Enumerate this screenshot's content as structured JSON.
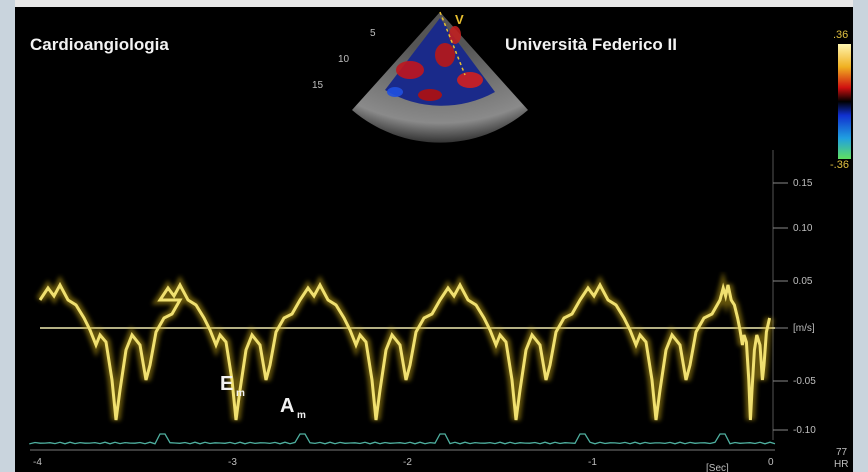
{
  "header": {
    "left": "Cardioangiologia",
    "right": "Università Federico II"
  },
  "color_scale": {
    "top": ".36",
    "bottom": "-.36"
  },
  "sector": {
    "mark": "V",
    "depths": [
      "5",
      "10",
      "15"
    ]
  },
  "velocity_axis": {
    "labels": [
      "0.15",
      "0.10",
      "0.05",
      "[m/s]",
      "-0.05",
      "-0.10"
    ]
  },
  "time_axis": {
    "labels": [
      "-4",
      "-3",
      "-2",
      "-1",
      "0"
    ],
    "unit": "[Sec]"
  },
  "annotations": {
    "e_main": "E",
    "e_sub": "m",
    "a_main": "A",
    "a_sub": "m"
  },
  "heart_rate": {
    "value": "77",
    "unit": "HR"
  }
}
